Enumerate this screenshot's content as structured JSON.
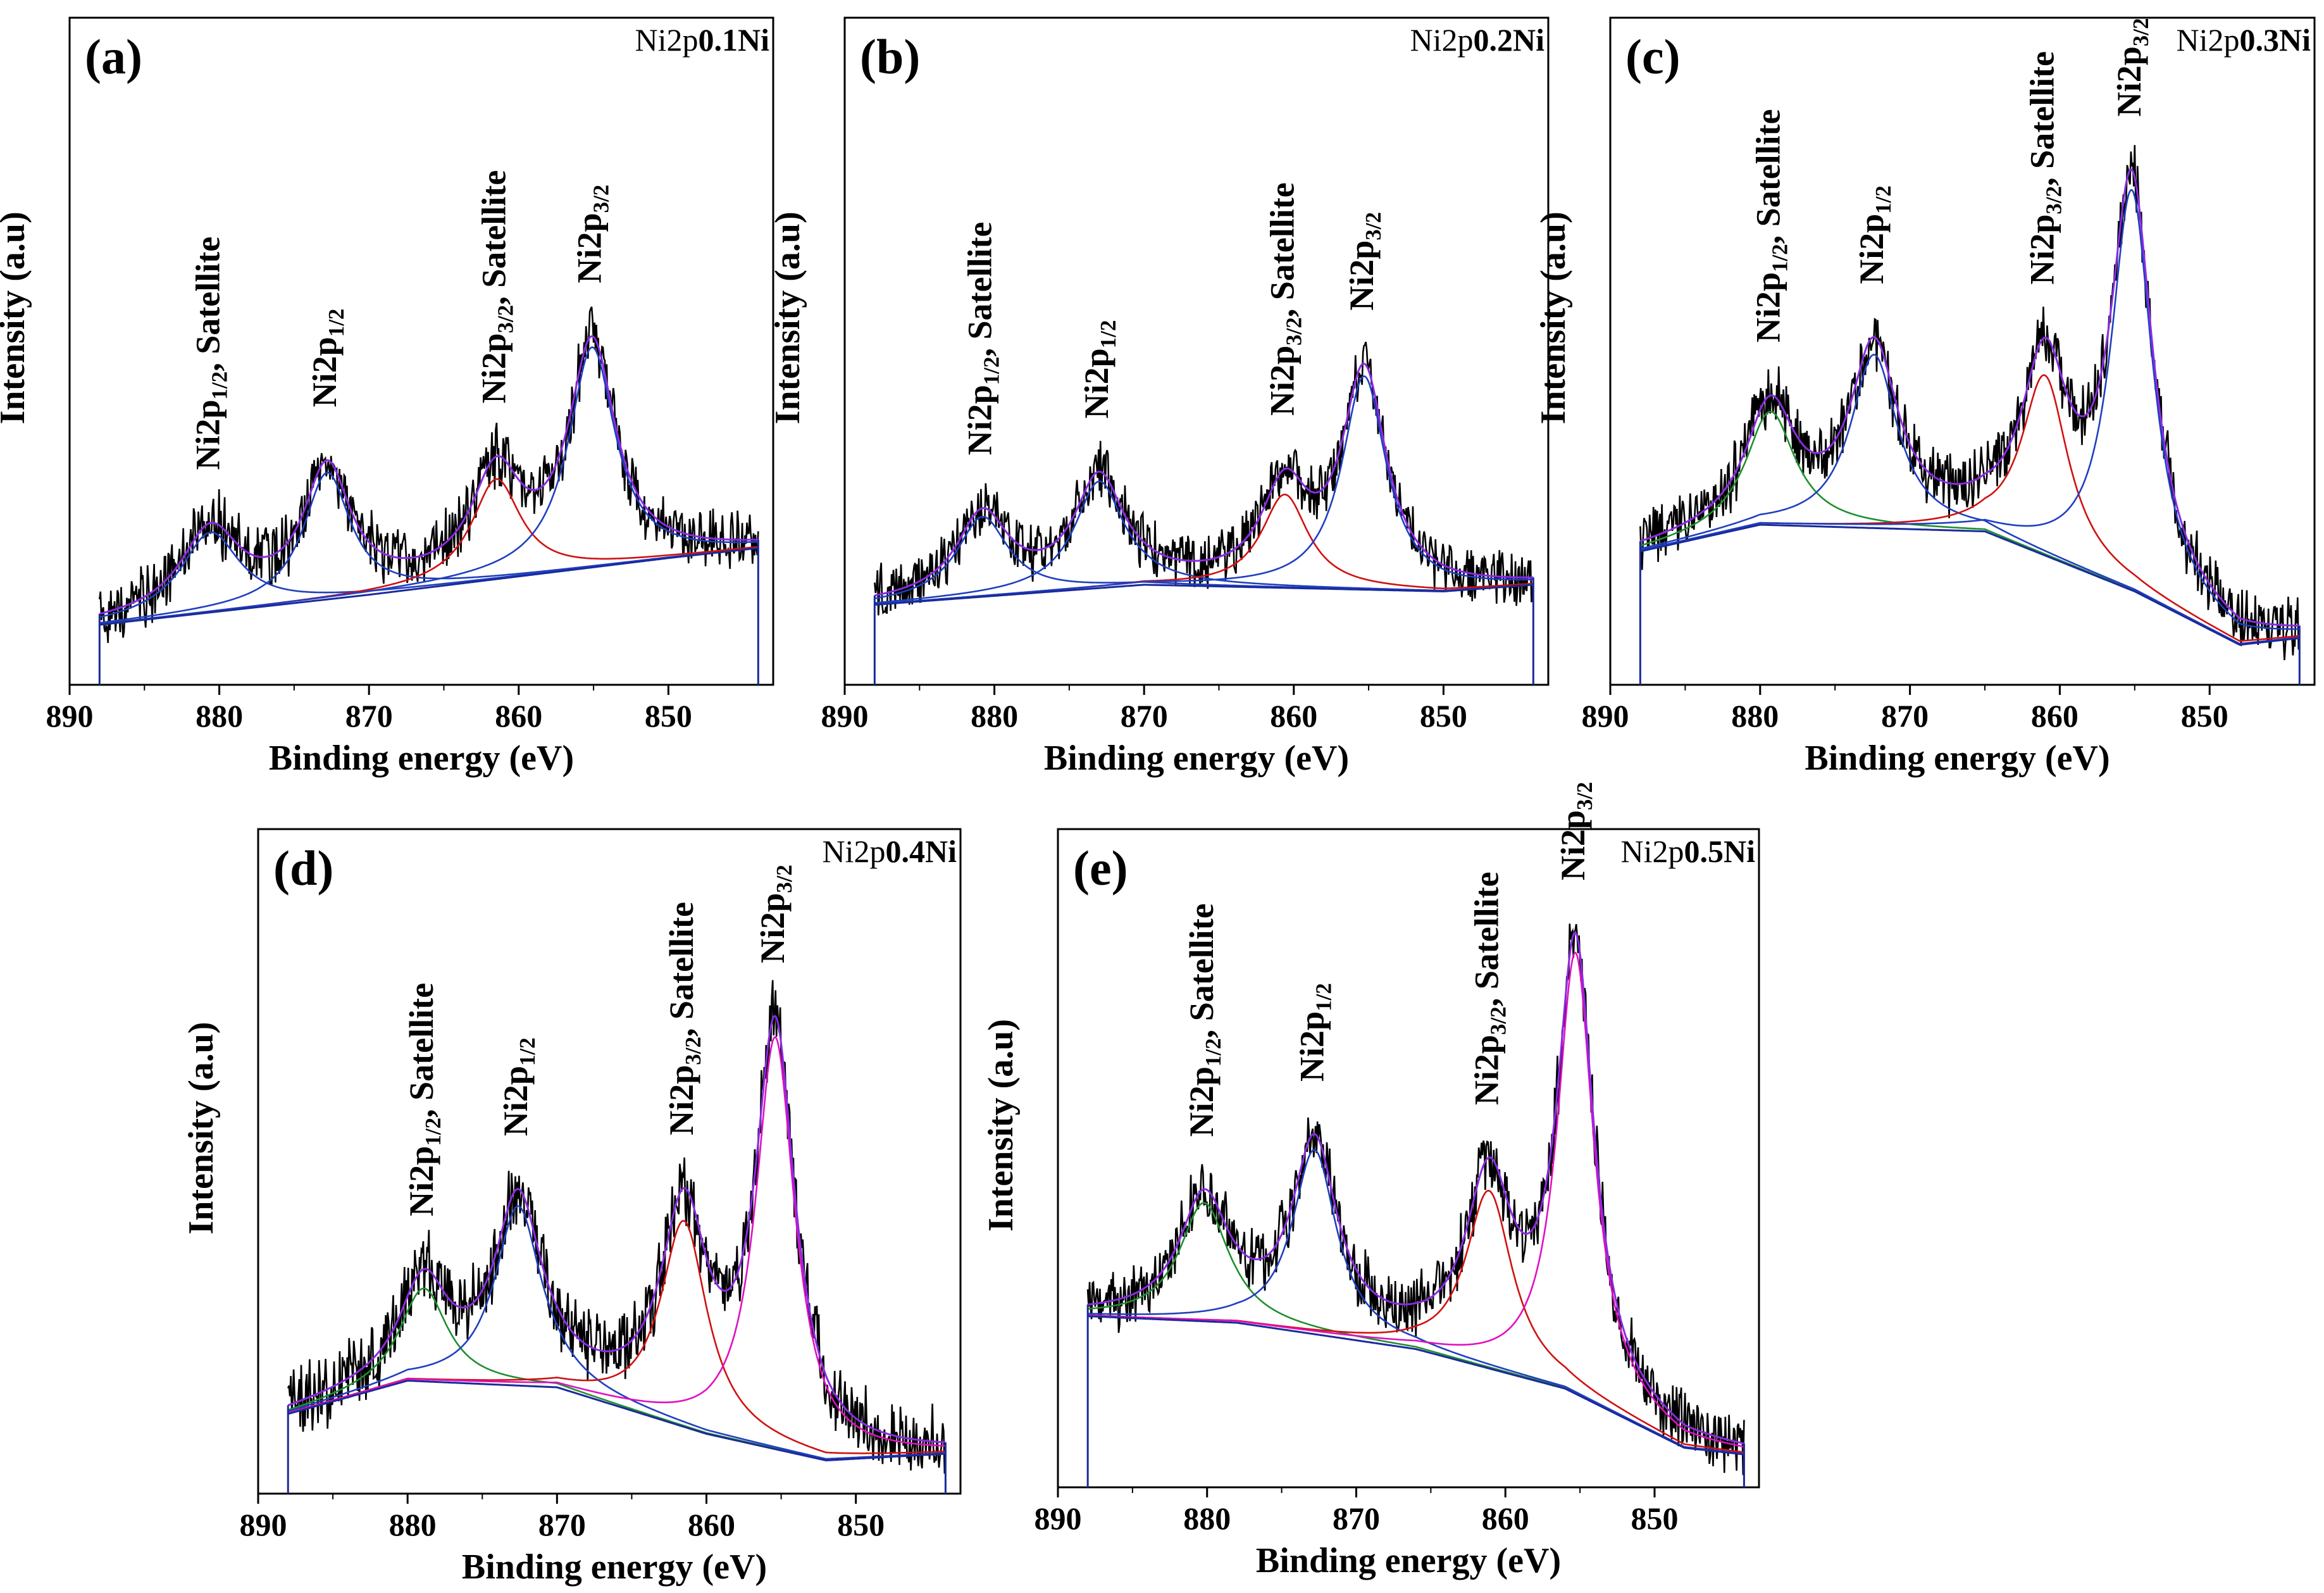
{
  "figure": {
    "xlabel": "Binding energy (eV)",
    "ylabel": "Intensity (a.u)"
  },
  "chart_data": [
    {
      "panel": "(a)",
      "type": "line",
      "title": "Ni2p 0.1Ni",
      "sample_prefix": "Ni2p",
      "sample": "0.1Ni",
      "xlabel": "Binding energy (eV)",
      "ylabel": "Intensity (a.u)",
      "xlim": [
        890,
        843
      ],
      "x_ticks": [
        890,
        880,
        870,
        860,
        850
      ],
      "data_range": [
        888,
        844
      ],
      "ylim": [
        0,
        1
      ],
      "y_ticks": [],
      "background": [
        [
          888,
          0.09
        ],
        [
          870,
          0.135
        ],
        [
          850,
          0.19
        ],
        [
          844,
          0.205
        ]
      ],
      "peaks": [
        {
          "center": 880.6,
          "height": 0.12,
          "width": 2.4,
          "color": "#1f3fbf"
        },
        {
          "center": 872.8,
          "height": 0.19,
          "width": 1.9,
          "color": "#1f3fbf"
        },
        {
          "center": 861.5,
          "height": 0.15,
          "width": 2.0,
          "color": "#d01010"
        },
        {
          "center": 855.1,
          "height": 0.33,
          "width": 1.9,
          "color": "#1f3fbf"
        }
      ],
      "noise": 0.04,
      "annotations": [
        {
          "x": 880.6,
          "main": "Ni2p",
          "sub": "1/2",
          "rest": ", Satellite"
        },
        {
          "x": 872.8,
          "main": "Ni2p",
          "sub": "1/2",
          "rest": ""
        },
        {
          "x": 861.5,
          "main": "Ni2p",
          "sub": "3/2",
          "rest": ", Satellite"
        },
        {
          "x": 855.1,
          "main": "Ni2p",
          "sub": "3/2",
          "rest": ""
        }
      ]
    },
    {
      "panel": "(b)",
      "type": "line",
      "title": "Ni2p 0.2Ni",
      "sample_prefix": "Ni2p",
      "sample": "0.2Ni",
      "xlabel": "Binding energy (eV)",
      "ylabel": "Intensity (a.u)",
      "xlim": [
        890,
        843
      ],
      "x_ticks": [
        890,
        880,
        870,
        860,
        850
      ],
      "data_range": [
        888,
        844
      ],
      "ylim": [
        0,
        1
      ],
      "y_ticks": [],
      "background": [
        [
          888,
          0.12
        ],
        [
          870,
          0.15
        ],
        [
          850,
          0.14
        ],
        [
          844,
          0.15
        ]
      ],
      "peaks": [
        {
          "center": 880.8,
          "height": 0.12,
          "width": 2.1,
          "color": "#1f3fbf"
        },
        {
          "center": 873.0,
          "height": 0.16,
          "width": 2.0,
          "color": "#1f3fbf"
        },
        {
          "center": 860.6,
          "height": 0.14,
          "width": 1.9,
          "color": "#d01010"
        },
        {
          "center": 855.3,
          "height": 0.32,
          "width": 1.8,
          "color": "#1f3fbf"
        }
      ],
      "noise": 0.035,
      "annotations": [
        {
          "x": 880.8,
          "main": "Ni2p",
          "sub": "1/2",
          "rest": ", Satellite"
        },
        {
          "x": 873.0,
          "main": "Ni2p",
          "sub": "1/2",
          "rest": ""
        },
        {
          "x": 860.6,
          "main": "Ni2p",
          "sub": "3/2",
          "rest": ", Satellite"
        },
        {
          "x": 855.3,
          "main": "Ni2p",
          "sub": "3/2",
          "rest": ""
        }
      ]
    },
    {
      "panel": "(c)",
      "type": "line",
      "title": "Ni2p 0.3Ni",
      "sample_prefix": "Ni2p",
      "sample": "0.3Ni",
      "xlabel": "Binding energy (eV)",
      "ylabel": "Intensity (a.u)",
      "xlim": [
        890,
        843
      ],
      "x_ticks": [
        890,
        880,
        870,
        860,
        850
      ],
      "data_range": [
        888,
        844
      ],
      "ylim": [
        0,
        1
      ],
      "y_ticks": [],
      "background": [
        [
          888,
          0.2
        ],
        [
          880,
          0.24
        ],
        [
          865,
          0.23
        ],
        [
          855,
          0.14
        ],
        [
          848,
          0.06
        ],
        [
          844,
          0.07
        ]
      ],
      "peaks": [
        {
          "center": 879.3,
          "height": 0.17,
          "width": 2.0,
          "color": "#1f8f2f"
        },
        {
          "center": 872.4,
          "height": 0.26,
          "width": 1.9,
          "color": "#1f3fbf"
        },
        {
          "center": 861.0,
          "height": 0.27,
          "width": 1.9,
          "color": "#d01010"
        },
        {
          "center": 855.2,
          "height": 0.6,
          "width": 1.7,
          "color": "#1f3fbf"
        }
      ],
      "noise": 0.04,
      "annotations": [
        {
          "x": 879.3,
          "main": "Ni2p",
          "sub": "1/2",
          "rest": ", Satellite"
        },
        {
          "x": 872.4,
          "main": "Ni2p",
          "sub": "1/2",
          "rest": ""
        },
        {
          "x": 861.0,
          "main": "Ni2p",
          "sub": "3/2",
          "rest": ", Satellite"
        },
        {
          "x": 855.2,
          "main": "Ni2p",
          "sub": "3/2",
          "rest": ""
        }
      ]
    },
    {
      "panel": "(d)",
      "type": "line",
      "title": "Ni2p 0.4Ni",
      "sample_prefix": "Ni2p",
      "sample": "0.4Ni",
      "xlabel": "Binding energy (eV)",
      "ylabel": "Intensity (a.u)",
      "xlim": [
        890,
        843
      ],
      "x_ticks": [
        890,
        880,
        870,
        860,
        850
      ],
      "data_range": [
        888,
        844
      ],
      "ylim": [
        0,
        1
      ],
      "y_ticks": [],
      "background": [
        [
          888,
          0.12
        ],
        [
          880,
          0.17
        ],
        [
          870,
          0.16
        ],
        [
          860,
          0.09
        ],
        [
          852,
          0.05
        ],
        [
          844,
          0.06
        ]
      ],
      "peaks": [
        {
          "center": 878.9,
          "height": 0.14,
          "width": 1.9,
          "color": "#1f8f2f"
        },
        {
          "center": 872.6,
          "height": 0.27,
          "width": 1.9,
          "color": "#1f3fbf"
        },
        {
          "center": 861.5,
          "height": 0.31,
          "width": 1.9,
          "color": "#d01010"
        },
        {
          "center": 855.4,
          "height": 0.62,
          "width": 1.6,
          "color": "#e010c0"
        }
      ],
      "noise": 0.045,
      "annotations": [
        {
          "x": 878.9,
          "main": "Ni2p",
          "sub": "1/2",
          "rest": ", Satellite"
        },
        {
          "x": 872.6,
          "main": "Ni2p",
          "sub": "1/2",
          "rest": ""
        },
        {
          "x": 861.5,
          "main": "Ni2p",
          "sub": "3/2",
          "rest": ", Satellite"
        },
        {
          "x": 855.4,
          "main": "Ni2p",
          "sub": "3/2",
          "rest": ""
        }
      ]
    },
    {
      "panel": "(e)",
      "type": "line",
      "title": "Ni2p 0.5Ni",
      "sample_prefix": "Ni2p",
      "sample": "0.5Ni",
      "xlabel": "Binding energy (eV)",
      "ylabel": "Intensity (a.u)",
      "xlim": [
        890,
        843
      ],
      "x_ticks": [
        890,
        880,
        870,
        860,
        850
      ],
      "data_range": [
        888,
        844
      ],
      "ylim": [
        0,
        1
      ],
      "y_ticks": [],
      "background": [
        [
          888,
          0.26
        ],
        [
          878,
          0.25
        ],
        [
          866,
          0.21
        ],
        [
          856,
          0.15
        ],
        [
          848,
          0.06
        ],
        [
          844,
          0.05
        ]
      ],
      "peaks": [
        {
          "center": 880.2,
          "height": 0.18,
          "width": 2.0,
          "color": "#1f8f2f"
        },
        {
          "center": 872.8,
          "height": 0.28,
          "width": 1.8,
          "color": "#1f3fbf"
        },
        {
          "center": 861.1,
          "height": 0.27,
          "width": 1.9,
          "color": "#d01010"
        },
        {
          "center": 855.3,
          "height": 0.67,
          "width": 1.5,
          "color": "#e010c0"
        }
      ],
      "noise": 0.04,
      "annotations": [
        {
          "x": 880.2,
          "main": "Ni2p",
          "sub": "1/2",
          "rest": ", Satellite"
        },
        {
          "x": 872.8,
          "main": "Ni2p",
          "sub": "1/2",
          "rest": ""
        },
        {
          "x": 861.1,
          "main": "Ni2p",
          "sub": "3/2",
          "rest": ", Satellite"
        },
        {
          "x": 855.3,
          "main": "Ni2p",
          "sub": "3/2",
          "rest": ""
        }
      ]
    }
  ]
}
